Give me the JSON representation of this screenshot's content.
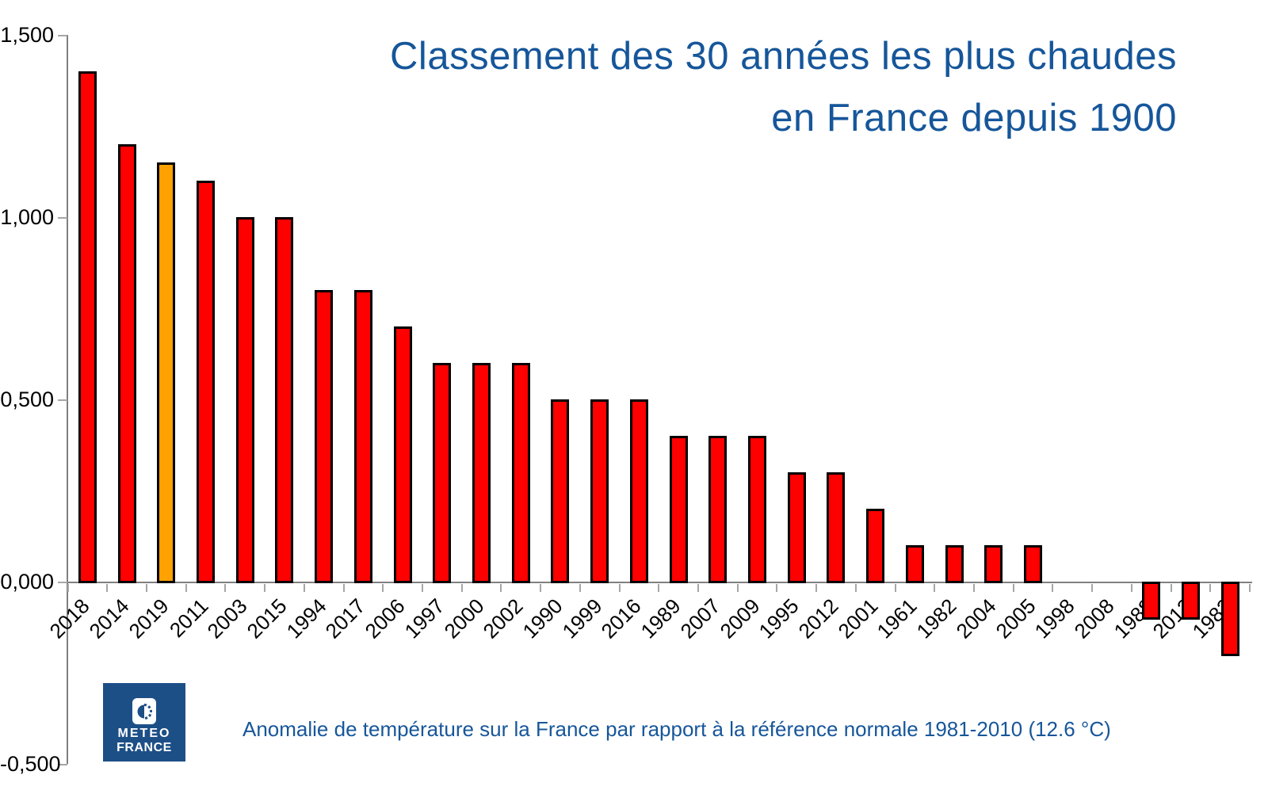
{
  "title": {
    "line1": "Classement des 30 années les plus chaudes",
    "line2": "en France depuis 1900",
    "color": "#16569A"
  },
  "caption": {
    "text": "Anomalie de température sur la France par rapport à la référence normale 1981-2010 (12.6 °C)",
    "color": "#16569A"
  },
  "logo": {
    "line1": "METEO",
    "line2": "FRANCE",
    "bg_color": "#1D4F87"
  },
  "chart_data": {
    "type": "bar",
    "title": "Classement des 30 années les plus chaudes en France depuis 1900",
    "xlabel": "",
    "ylabel": "",
    "categories": [
      "2018",
      "2014",
      "2019",
      "2011",
      "2003",
      "2015",
      "1994",
      "2017",
      "2006",
      "1997",
      "2000",
      "2002",
      "1990",
      "1999",
      "2016",
      "1989",
      "2007",
      "2009",
      "1995",
      "2012",
      "2001",
      "1961",
      "1982",
      "2004",
      "2005",
      "1998",
      "2008",
      "1988",
      "2013",
      "1983"
    ],
    "values": [
      1.4,
      1.2,
      1.15,
      1.1,
      1.0,
      1.0,
      0.8,
      0.8,
      0.7,
      0.6,
      0.6,
      0.6,
      0.5,
      0.5,
      0.5,
      0.4,
      0.4,
      0.4,
      0.3,
      0.3,
      0.2,
      0.1,
      0.1,
      0.1,
      0.1,
      0.0,
      0.0,
      -0.1,
      -0.1,
      -0.2
    ],
    "bar_color": "#FF0000",
    "bar_border_color": "#000000",
    "highlight": {
      "category": "2019",
      "index": 2,
      "color": "#FFA100"
    },
    "ylim": [
      -0.5,
      1.5
    ],
    "yticks": [
      {
        "value": 1.5,
        "label": "1,500"
      },
      {
        "value": 1.0,
        "label": "1,000"
      },
      {
        "value": 0.5,
        "label": "0,500"
      },
      {
        "value": 0.0,
        "label": "0,000"
      },
      {
        "value": -0.5,
        "label": "-0,500"
      }
    ],
    "grid": false,
    "legend": null
  }
}
